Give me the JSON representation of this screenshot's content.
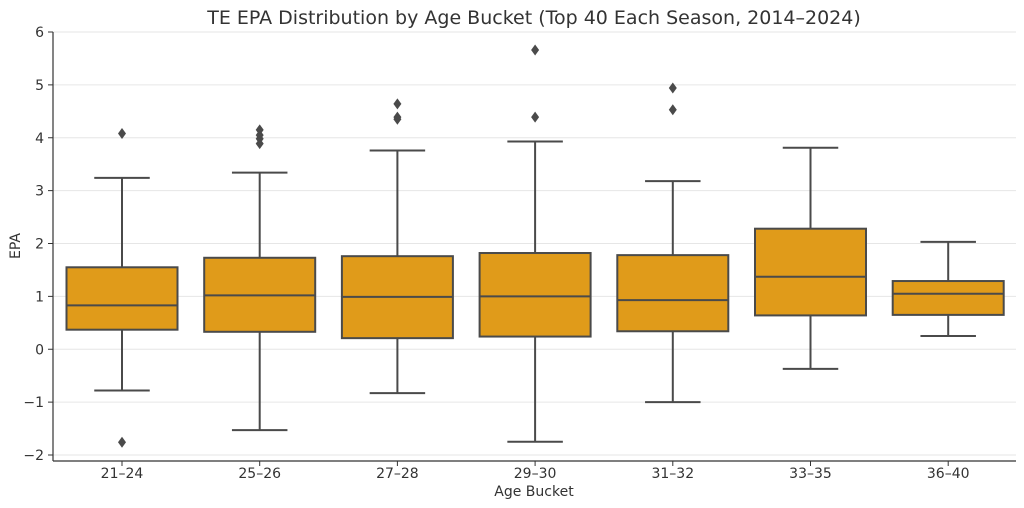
{
  "chart_data": {
    "type": "box",
    "title": "TE EPA Distribution by Age Bucket (Top 40 Each Season, 2014–2024)",
    "xlabel": "Age Bucket",
    "ylabel": "EPA",
    "ylim": [
      -2.1,
      6.05
    ],
    "yticks": [
      6,
      5,
      4,
      3,
      2,
      1,
      0,
      -1,
      -2
    ],
    "ytick_labels": [
      "6",
      "5",
      "4",
      "3",
      "2",
      "1",
      "0",
      "−1",
      "−2"
    ],
    "grid": true,
    "box_color": "#E09B1A",
    "line_color": "#4A4A4A",
    "categories": [
      "21–24",
      "25–26",
      "27–28",
      "29–30",
      "31–32",
      "33–35",
      "36–40"
    ],
    "boxes": [
      {
        "q1": 0.37,
        "median": 0.83,
        "q3": 1.55,
        "whisker_low": -0.78,
        "whisker_high": 3.24,
        "outliers": [
          4.08,
          -1.76
        ]
      },
      {
        "q1": 0.33,
        "median": 1.02,
        "q3": 1.73,
        "whisker_low": -1.53,
        "whisker_high": 3.34,
        "outliers": [
          4.15,
          4.05,
          3.98,
          3.89
        ]
      },
      {
        "q1": 0.21,
        "median": 0.99,
        "q3": 1.76,
        "whisker_low": -0.83,
        "whisker_high": 3.76,
        "outliers": [
          4.64,
          4.39,
          4.35
        ]
      },
      {
        "q1": 0.24,
        "median": 1.0,
        "q3": 1.82,
        "whisker_low": -1.75,
        "whisker_high": 3.93,
        "outliers": [
          5.66,
          4.39
        ]
      },
      {
        "q1": 0.34,
        "median": 0.93,
        "q3": 1.78,
        "whisker_low": -1.0,
        "whisker_high": 3.18,
        "outliers": [
          4.94,
          4.53
        ]
      },
      {
        "q1": 0.64,
        "median": 1.37,
        "q3": 2.28,
        "whisker_low": -0.37,
        "whisker_high": 3.81,
        "outliers": []
      },
      {
        "q1": 0.65,
        "median": 1.05,
        "q3": 1.29,
        "whisker_low": 0.25,
        "whisker_high": 2.03,
        "outliers": []
      }
    ]
  }
}
